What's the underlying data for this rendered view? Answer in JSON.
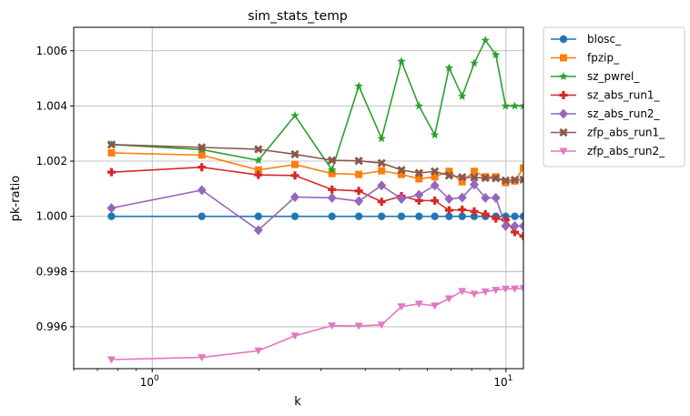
{
  "chart_data": {
    "type": "line",
    "title": "sim_stats_temp",
    "xlabel": "k",
    "ylabel": "pk-ratio",
    "xscale": "log",
    "xlim": [
      0.6,
      11.2
    ],
    "ylim": [
      0.99448,
      1.00685
    ],
    "grid": true,
    "legend_position": "outside-right",
    "x": [
      0.767,
      1.381,
      1.995,
      2.532,
      3.222,
      3.836,
      4.45,
      5.063,
      5.677,
      6.29,
      6.904,
      7.518,
      8.132,
      8.746,
      9.36,
      9.974,
      10.588,
      11.202
    ],
    "xticks": [
      {
        "value": 1,
        "base": "10",
        "exp": "0"
      },
      {
        "value": 10,
        "base": "10",
        "exp": "1"
      }
    ],
    "yticks": [
      {
        "value": 0.996,
        "label": "0.996"
      },
      {
        "value": 0.998,
        "label": "0.998"
      },
      {
        "value": 1.0,
        "label": "1.000"
      },
      {
        "value": 1.002,
        "label": "1.002"
      },
      {
        "value": 1.004,
        "label": "1.004"
      },
      {
        "value": 1.006,
        "label": "1.006"
      }
    ],
    "series": [
      {
        "name": "blosc_",
        "color": "#1f77b4",
        "marker": "circle",
        "values": [
          1.0,
          1.0,
          1.0,
          1.0,
          1.0,
          1.0,
          1.0,
          1.0,
          1.0,
          1.0,
          1.0,
          1.0,
          1.0,
          1.0,
          1.0,
          1.0,
          1.0,
          1.0
        ]
      },
      {
        "name": "fpzip_",
        "color": "#ff7f0e",
        "marker": "square",
        "values": [
          1.0023,
          1.00222,
          1.00168,
          1.00188,
          1.00155,
          1.00152,
          1.00165,
          1.00152,
          1.00136,
          1.00143,
          1.00163,
          1.00125,
          1.00163,
          1.00143,
          1.00143,
          1.00122,
          1.00128,
          1.00175
        ]
      },
      {
        "name": "sz_pwrel_",
        "color": "#2ca02c",
        "marker": "star",
        "values": [
          1.0026,
          1.00242,
          1.00203,
          1.00365,
          1.00168,
          1.00472,
          1.00282,
          1.00562,
          1.004,
          1.00295,
          1.00538,
          1.00435,
          1.00555,
          1.00638,
          1.00585,
          1.004,
          1.004,
          1.004
        ]
      },
      {
        "name": "sz_abs_run1_",
        "color": "#d62728",
        "marker": "plus",
        "values": [
          1.0016,
          1.00178,
          1.0015,
          1.00148,
          1.00097,
          1.00092,
          1.00053,
          1.00073,
          1.00057,
          1.00057,
          1.00022,
          1.00024,
          1.00018,
          1.00008,
          0.99992,
          0.99987,
          0.99943,
          0.99928
        ]
      },
      {
        "name": "sz_abs_run2_",
        "color": "#9467bd",
        "marker": "diamond",
        "values": [
          1.0003,
          1.00095,
          0.9995,
          1.0007,
          1.00067,
          1.00055,
          1.00112,
          1.00063,
          1.00078,
          1.00112,
          1.00063,
          1.00068,
          1.00115,
          1.00067,
          1.00067,
          0.99965,
          0.99965,
          0.99965
        ]
      },
      {
        "name": "zfp_abs_run1_",
        "color": "#8c564b",
        "marker": "x",
        "values": [
          1.0026,
          1.0025,
          1.00243,
          1.00225,
          1.00203,
          1.00201,
          1.00193,
          1.00168,
          1.00157,
          1.00163,
          1.00148,
          1.00142,
          1.00141,
          1.00139,
          1.00138,
          1.0013,
          1.00132,
          1.00133
        ]
      },
      {
        "name": "zfp_abs_run2_",
        "color": "#e377c2",
        "marker": "triangle-down",
        "values": [
          0.99481,
          0.99489,
          0.99513,
          0.99567,
          0.99604,
          0.99603,
          0.99607,
          0.99673,
          0.99683,
          0.99676,
          0.99702,
          0.99729,
          0.99719,
          0.99727,
          0.99733,
          0.99737,
          0.99738,
          0.99739
        ]
      }
    ]
  }
}
